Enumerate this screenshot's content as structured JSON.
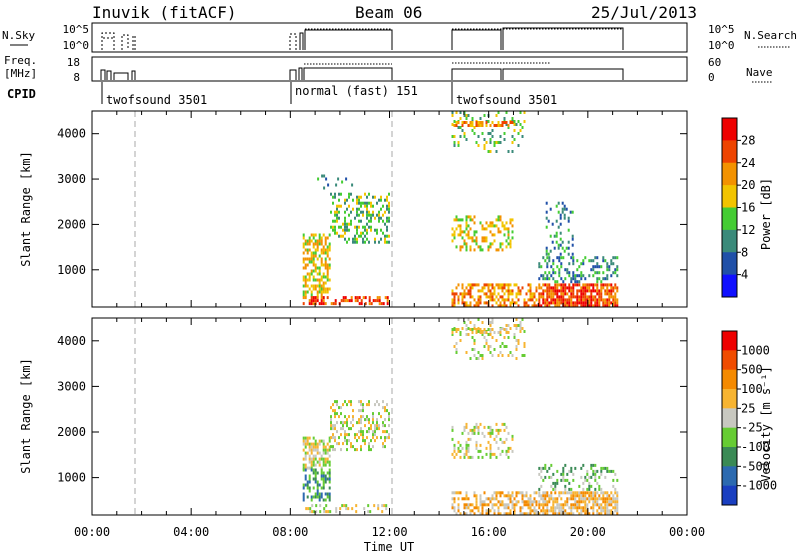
{
  "header": {
    "station": "Inuvik (fitACF)",
    "beam": "Beam 06",
    "date": "25/Jul/2013"
  },
  "chart_data": [
    {
      "type": "line",
      "panel": "nsky-nsearch",
      "left_label": "N.Sky",
      "right_label": "N.Search",
      "left_ticks": [
        "10^5",
        "10^0"
      ],
      "right_ticks": [
        "10^5",
        "10^0"
      ],
      "xlim": [
        0,
        24
      ]
    },
    {
      "type": "line",
      "panel": "frequency-nave",
      "left_label_lines": [
        "Freq.",
        "[MHz]"
      ],
      "right_label": "Nave",
      "left_ticks": [
        "18",
        "8"
      ],
      "right_ticks": [
        "60",
        "0"
      ],
      "xlim": [
        0,
        24
      ]
    },
    {
      "type": "table",
      "panel": "cpid",
      "label": "CPID",
      "programs": [
        {
          "name": "twofsound",
          "id": "3501",
          "start": 0.1
        },
        {
          "name": "normal (fast)",
          "id": "151",
          "start": 8.0
        },
        {
          "name": "twofsound",
          "id": "3501",
          "start": 14.5
        }
      ]
    },
    {
      "type": "heatmap",
      "panel": "power",
      "ylabel": "Slant Range [km]",
      "xlim": [
        0,
        24
      ],
      "ylim": [
        180,
        4500
      ],
      "yticks": [
        1000,
        2000,
        3000,
        4000
      ],
      "colorbar_label": "Power [dB]",
      "colorbar_ticks": [
        "4",
        "8",
        "12",
        "16",
        "20",
        "24",
        "28"
      ],
      "colorbar_colors": [
        "#1010ff",
        "#2050a8",
        "#3a8a7a",
        "#44cc33",
        "#f2c400",
        "#f39200",
        "#ee4400",
        "#ee0000"
      ],
      "gap_markers_hours": [
        1.75,
        12.0
      ],
      "scatter_regions": [
        {
          "t0": 8.5,
          "t1": 9.6,
          "r0": 400,
          "r1": 1800,
          "level": 4,
          "density": 0.55
        },
        {
          "t0": 8.5,
          "t1": 12.0,
          "r0": 200,
          "r1": 420,
          "level": 6,
          "density": 0.55
        },
        {
          "t0": 9.6,
          "t1": 12.0,
          "r0": 1600,
          "r1": 2700,
          "level": 3,
          "density": 0.35
        },
        {
          "t0": 9.0,
          "t1": 10.5,
          "r0": 2800,
          "r1": 3100,
          "level": 2,
          "density": 0.12
        },
        {
          "t0": 14.5,
          "t1": 18.0,
          "r0": 200,
          "r1": 700,
          "level": 5,
          "density": 0.5
        },
        {
          "t0": 18.0,
          "t1": 21.2,
          "r0": 200,
          "r1": 700,
          "level": 6,
          "density": 0.8
        },
        {
          "t0": 14.5,
          "t1": 17.0,
          "r0": 1400,
          "r1": 2200,
          "level": 4,
          "density": 0.3
        },
        {
          "t0": 18.0,
          "t1": 21.2,
          "r0": 700,
          "r1": 1300,
          "level": 2,
          "density": 0.35
        },
        {
          "t0": 18.3,
          "t1": 19.4,
          "r0": 1300,
          "r1": 2500,
          "level": 2,
          "density": 0.25
        },
        {
          "t0": 14.5,
          "t1": 17.5,
          "r0": 3600,
          "r1": 4500,
          "level": 3,
          "density": 0.18
        },
        {
          "t0": 14.5,
          "t1": 17.0,
          "r0": 4150,
          "r1": 4280,
          "level": 5,
          "density": 0.55
        }
      ]
    },
    {
      "type": "heatmap",
      "panel": "velocity",
      "ylabel": "Slant Range [km]",
      "xlabel": "Time UT",
      "xlim": [
        0,
        24
      ],
      "ylim": [
        180,
        4500
      ],
      "xticks": [
        "00:00",
        "04:00",
        "08:00",
        "12:00",
        "16:00",
        "20:00",
        "00:00"
      ],
      "yticks": [
        1000,
        2000,
        3000,
        4000
      ],
      "colorbar_label": "Velocity [m s⁻¹]",
      "colorbar_ticks": [
        "1000",
        "500",
        "100",
        "25",
        "-25",
        "-100",
        "-500",
        "-1000"
      ],
      "colorbar_colors": [
        "#1a3fc0",
        "#2c6ab0",
        "#3a8a55",
        "#66cc33",
        "#c8c8c0",
        "#f7b431",
        "#f48a00",
        "#f04c00",
        "#ee0000"
      ],
      "gap_markers_hours": [
        1.75,
        12.0
      ],
      "scatter_regions": [
        {
          "t0": 8.5,
          "t1": 9.6,
          "r0": 1200,
          "r1": 1900,
          "level": 4,
          "density": 0.6
        },
        {
          "t0": 8.5,
          "t1": 9.6,
          "r0": 500,
          "r1": 1200,
          "level": 2,
          "density": 0.45
        },
        {
          "t0": 9.6,
          "t1": 12.0,
          "r0": 1600,
          "r1": 2700,
          "level": 4,
          "density": 0.35
        },
        {
          "t0": 8.6,
          "t1": 12.0,
          "r0": 200,
          "r1": 420,
          "level": 4,
          "density": 0.35
        },
        {
          "t0": 14.5,
          "t1": 18.0,
          "r0": 200,
          "r1": 700,
          "level": 5,
          "density": 0.55
        },
        {
          "t0": 18.0,
          "t1": 21.2,
          "r0": 200,
          "r1": 700,
          "level": 5,
          "density": 0.75
        },
        {
          "t0": 14.5,
          "t1": 17.0,
          "r0": 1400,
          "r1": 2200,
          "level": 4,
          "density": 0.3
        },
        {
          "t0": 18.0,
          "t1": 21.2,
          "r0": 700,
          "r1": 1300,
          "level": 3,
          "density": 0.3
        },
        {
          "t0": 14.5,
          "t1": 17.5,
          "r0": 3600,
          "r1": 4500,
          "level": 4,
          "density": 0.2
        },
        {
          "t0": 14.5,
          "t1": 17.0,
          "r0": 4150,
          "r1": 4280,
          "level": 4,
          "density": 0.5
        }
      ]
    }
  ]
}
